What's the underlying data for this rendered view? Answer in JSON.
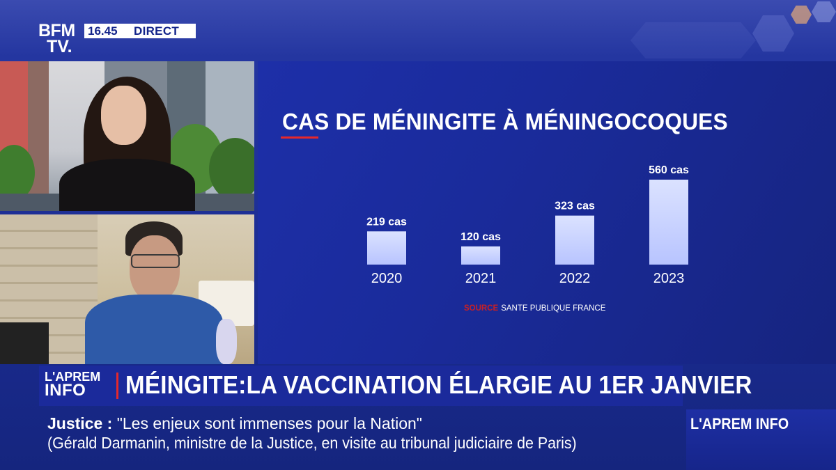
{
  "channel": {
    "logo_line1": "BFM",
    "logo_line2": "TV.",
    "time": "16.45",
    "live_label": "DIRECT"
  },
  "chart_data": {
    "type": "bar",
    "title": "CAS DE MÉNINGITE À MÉNINGOCOQUES",
    "categories": [
      "2020",
      "2021",
      "2022",
      "2023"
    ],
    "values": [
      219,
      120,
      323,
      560
    ],
    "data_labels": [
      "219 cas",
      "120 cas",
      "323 cas",
      "560 cas"
    ],
    "xlabel": "",
    "ylabel": "",
    "ylim": [
      0,
      560
    ],
    "grid": false,
    "bar_color": "#b8c4ff",
    "source_keyword": "SOURCE",
    "source_text": "SANTE PUBLIQUE FRANCE"
  },
  "lower_third": {
    "program_logo_line1": "L'APREM",
    "program_logo_line2": "INFO",
    "headline": "MÉINGITE:LA VACCINATION ÉLARGIE AU 1ER JANVIER"
  },
  "ticker": {
    "keyword": "Justice",
    "separator": " : ",
    "quote": "\"Les enjeux sont immenses pour la Nation\"",
    "attribution": "(Gérald Darmanin, ministre de la Justice, en visite au tribunal judiciaire de Paris)"
  },
  "program_brand": "L'APREM INFO",
  "colors": {
    "accent_red": "#e6282b",
    "brand_blue": "#1b2a9b"
  }
}
